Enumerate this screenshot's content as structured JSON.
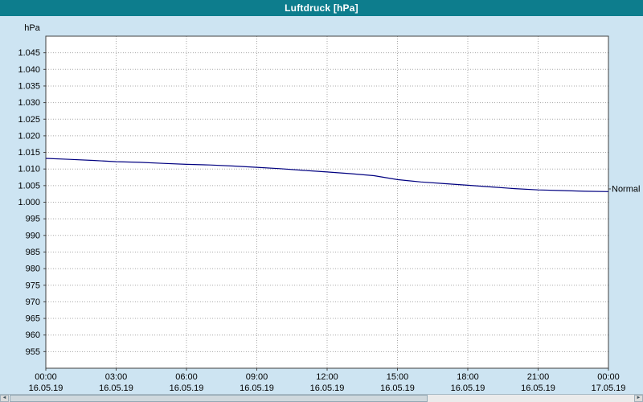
{
  "window": {
    "title": "Luftdruck [hPa]"
  },
  "colors": {
    "titlebar_bg": "#0d7d8d",
    "titlebar_fg": "#ffffff",
    "window_bg": "#cde4f2",
    "plot_bg": "#ffffff",
    "plot_border": "#404040",
    "grid": "#a8a8a8",
    "line": "#000080",
    "text": "#000000"
  },
  "chart_data": {
    "type": "line",
    "title": "Luftdruck [hPa]",
    "ylabel": "hPa",
    "xlabel": "",
    "ylim": [
      950,
      1050
    ],
    "xlim_hours": [
      0,
      24
    ],
    "grid": true,
    "legend": "none",
    "yticks": [
      {
        "value": 1045,
        "label": "1.045"
      },
      {
        "value": 1040,
        "label": "1.040"
      },
      {
        "value": 1035,
        "label": "1.035"
      },
      {
        "value": 1030,
        "label": "1.030"
      },
      {
        "value": 1025,
        "label": "1.025"
      },
      {
        "value": 1020,
        "label": "1.020"
      },
      {
        "value": 1015,
        "label": "1.015"
      },
      {
        "value": 1010,
        "label": "1.010"
      },
      {
        "value": 1005,
        "label": "1.005"
      },
      {
        "value": 1000,
        "label": "1.000"
      },
      {
        "value": 995,
        "label": "995"
      },
      {
        "value": 990,
        "label": "990"
      },
      {
        "value": 985,
        "label": "985"
      },
      {
        "value": 980,
        "label": "980"
      },
      {
        "value": 975,
        "label": "975"
      },
      {
        "value": 970,
        "label": "970"
      },
      {
        "value": 965,
        "label": "965"
      },
      {
        "value": 960,
        "label": "960"
      },
      {
        "value": 955,
        "label": "955"
      }
    ],
    "xticks": [
      {
        "hour": 0,
        "time": "00:00",
        "date": "16.05.19"
      },
      {
        "hour": 3,
        "time": "03:00",
        "date": "16.05.19"
      },
      {
        "hour": 6,
        "time": "06:00",
        "date": "16.05.19"
      },
      {
        "hour": 9,
        "time": "09:00",
        "date": "16.05.19"
      },
      {
        "hour": 12,
        "time": "12:00",
        "date": "16.05.19"
      },
      {
        "hour": 15,
        "time": "15:00",
        "date": "16.05.19"
      },
      {
        "hour": 18,
        "time": "18:00",
        "date": "16.05.19"
      },
      {
        "hour": 21,
        "time": "21:00",
        "date": "16.05.19"
      },
      {
        "hour": 24,
        "time": "00:00",
        "date": "17.05.19"
      }
    ],
    "series": [
      {
        "name": "Luftdruck",
        "color": "#000080",
        "points": [
          [
            0,
            1013.2
          ],
          [
            1,
            1012.9
          ],
          [
            2,
            1012.6
          ],
          [
            3,
            1012.2
          ],
          [
            4,
            1012.0
          ],
          [
            5,
            1011.7
          ],
          [
            6,
            1011.4
          ],
          [
            7,
            1011.2
          ],
          [
            8,
            1010.9
          ],
          [
            9,
            1010.5
          ],
          [
            10,
            1010.1
          ],
          [
            11,
            1009.6
          ],
          [
            12,
            1009.1
          ],
          [
            13,
            1008.6
          ],
          [
            14,
            1008.0
          ],
          [
            15,
            1006.8
          ],
          [
            16,
            1006.1
          ],
          [
            17,
            1005.6
          ],
          [
            18,
            1005.1
          ],
          [
            19,
            1004.6
          ],
          [
            20,
            1004.1
          ],
          [
            21,
            1003.7
          ],
          [
            22,
            1003.5
          ],
          [
            23,
            1003.3
          ],
          [
            24,
            1003.2
          ]
        ]
      }
    ],
    "annotation": {
      "label": "Normal",
      "value": 1004
    }
  },
  "scrollbar": {
    "left_arrow": "◄",
    "right_arrow": "►"
  }
}
